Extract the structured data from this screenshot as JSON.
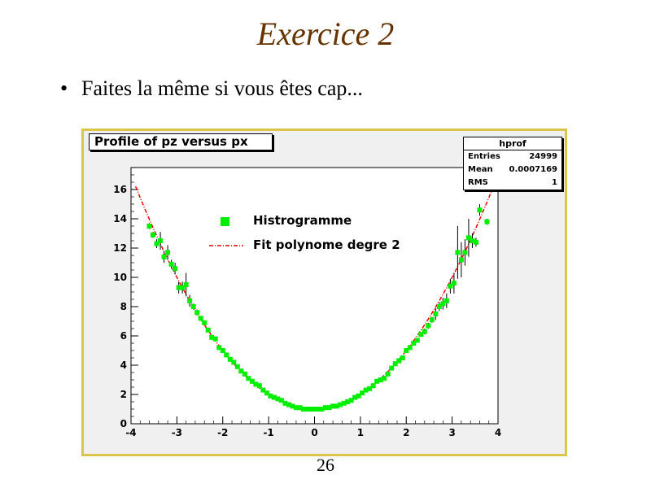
{
  "slide": {
    "title": "Exercice 2",
    "bullet": "Faites la même si vous êtes cap...",
    "page_number": "26"
  },
  "stats": {
    "name": "hprof",
    "rows": [
      {
        "label": "Entries",
        "value": "24999"
      },
      {
        "label": "Mean",
        "value": "0.0007169"
      },
      {
        "label": "RMS",
        "value": "1"
      }
    ]
  },
  "chart_data": {
    "type": "scatter",
    "title": "Profile of pz versus px",
    "xlabel": "",
    "ylabel": "",
    "xlim": [
      -4,
      4
    ],
    "ylim": [
      0,
      17.5
    ],
    "xticks": [
      -4,
      -3,
      -2,
      -1,
      0,
      1,
      2,
      3,
      4
    ],
    "yticks": [
      0,
      2,
      4,
      6,
      8,
      10,
      12,
      14,
      16
    ],
    "grid": false,
    "legend": {
      "placement": "top-center",
      "entries": [
        {
          "label": "Histrogramme",
          "symbol": "square",
          "color": "#00ee00"
        },
        {
          "label": "Fit polynome degre 2",
          "symbol": "dash-dot-line",
          "color": "#ee0000"
        }
      ]
    },
    "series": [
      {
        "name": "Histrogramme",
        "color": "#00ee00",
        "x": [
          -3.6,
          -3.52,
          -3.44,
          -3.36,
          -3.28,
          -3.2,
          -3.12,
          -3.04,
          -2.96,
          -2.88,
          -2.8,
          -2.72,
          -2.64,
          -2.56,
          -2.48,
          -2.4,
          -2.32,
          -2.24,
          -2.16,
          -2.08,
          -2.0,
          -1.92,
          -1.84,
          -1.76,
          -1.68,
          -1.6,
          -1.52,
          -1.44,
          -1.36,
          -1.28,
          -1.2,
          -1.12,
          -1.04,
          -0.96,
          -0.88,
          -0.8,
          -0.72,
          -0.64,
          -0.56,
          -0.48,
          -0.4,
          -0.32,
          -0.24,
          -0.16,
          -0.08,
          0.0,
          0.08,
          0.16,
          0.24,
          0.32,
          0.4,
          0.48,
          0.56,
          0.64,
          0.72,
          0.8,
          0.88,
          0.96,
          1.04,
          1.12,
          1.2,
          1.28,
          1.36,
          1.44,
          1.52,
          1.6,
          1.68,
          1.76,
          1.84,
          1.92,
          2.0,
          2.08,
          2.16,
          2.24,
          2.32,
          2.4,
          2.48,
          2.56,
          2.64,
          2.72,
          2.8,
          2.88,
          2.96,
          3.04,
          3.12,
          3.2,
          3.28,
          3.36,
          3.44,
          3.52,
          3.6,
          3.76
        ],
        "y": [
          13.5,
          12.9,
          12.3,
          12.5,
          11.4,
          11.7,
          10.9,
          10.6,
          9.3,
          9.3,
          9.5,
          8.4,
          8.0,
          7.6,
          7.2,
          6.9,
          6.4,
          5.9,
          5.8,
          5.2,
          5.0,
          4.7,
          4.4,
          4.2,
          3.9,
          3.6,
          3.4,
          3.1,
          2.9,
          2.7,
          2.6,
          2.3,
          2.1,
          1.9,
          1.8,
          1.7,
          1.6,
          1.4,
          1.3,
          1.2,
          1.1,
          1.1,
          1.0,
          1.0,
          1.0,
          1.0,
          1.0,
          1.0,
          1.1,
          1.1,
          1.2,
          1.2,
          1.3,
          1.4,
          1.5,
          1.6,
          1.8,
          1.9,
          2.1,
          2.3,
          2.4,
          2.6,
          2.9,
          3.0,
          3.1,
          3.4,
          3.8,
          4.1,
          4.3,
          4.5,
          5.0,
          5.2,
          5.5,
          5.7,
          6.1,
          6.3,
          6.7,
          7.1,
          7.5,
          8.0,
          8.2,
          8.4,
          9.4,
          9.6,
          11.7,
          11.2,
          11.7,
          12.7,
          12.5,
          12.4,
          14.6,
          13.8
        ],
        "yerr": [
          0.2,
          0.2,
          0.3,
          0.6,
          0.4,
          0.5,
          0.3,
          0.4,
          0.4,
          0.4,
          0.8,
          0.4,
          0.2,
          0.2,
          0.1,
          0.1,
          0.1,
          0.1,
          0.1,
          0.1,
          0.1,
          0.1,
          0.1,
          0.1,
          0.1,
          0.1,
          0.1,
          0.1,
          0.1,
          0.1,
          0.1,
          0.05,
          0.05,
          0.05,
          0.05,
          0.05,
          0.05,
          0.05,
          0.05,
          0.05,
          0.05,
          0.05,
          0.05,
          0.05,
          0.05,
          0.05,
          0.05,
          0.05,
          0.05,
          0.05,
          0.05,
          0.05,
          0.05,
          0.05,
          0.05,
          0.05,
          0.05,
          0.05,
          0.05,
          0.05,
          0.1,
          0.1,
          0.1,
          0.1,
          0.1,
          0.1,
          0.1,
          0.1,
          0.1,
          0.1,
          0.1,
          0.1,
          0.1,
          0.1,
          0.1,
          0.2,
          0.2,
          0.2,
          0.4,
          0.3,
          0.4,
          0.5,
          0.5,
          0.7,
          1.8,
          1.2,
          0.9,
          1.3,
          0.5,
          0.3,
          0.4,
          0.2
        ]
      },
      {
        "name": "Fit polynome degre 2",
        "color": "#ee0000",
        "coefficients": [
          1.0,
          0.0,
          1.0
        ],
        "x_range": [
          -3.9,
          3.9
        ]
      }
    ]
  }
}
